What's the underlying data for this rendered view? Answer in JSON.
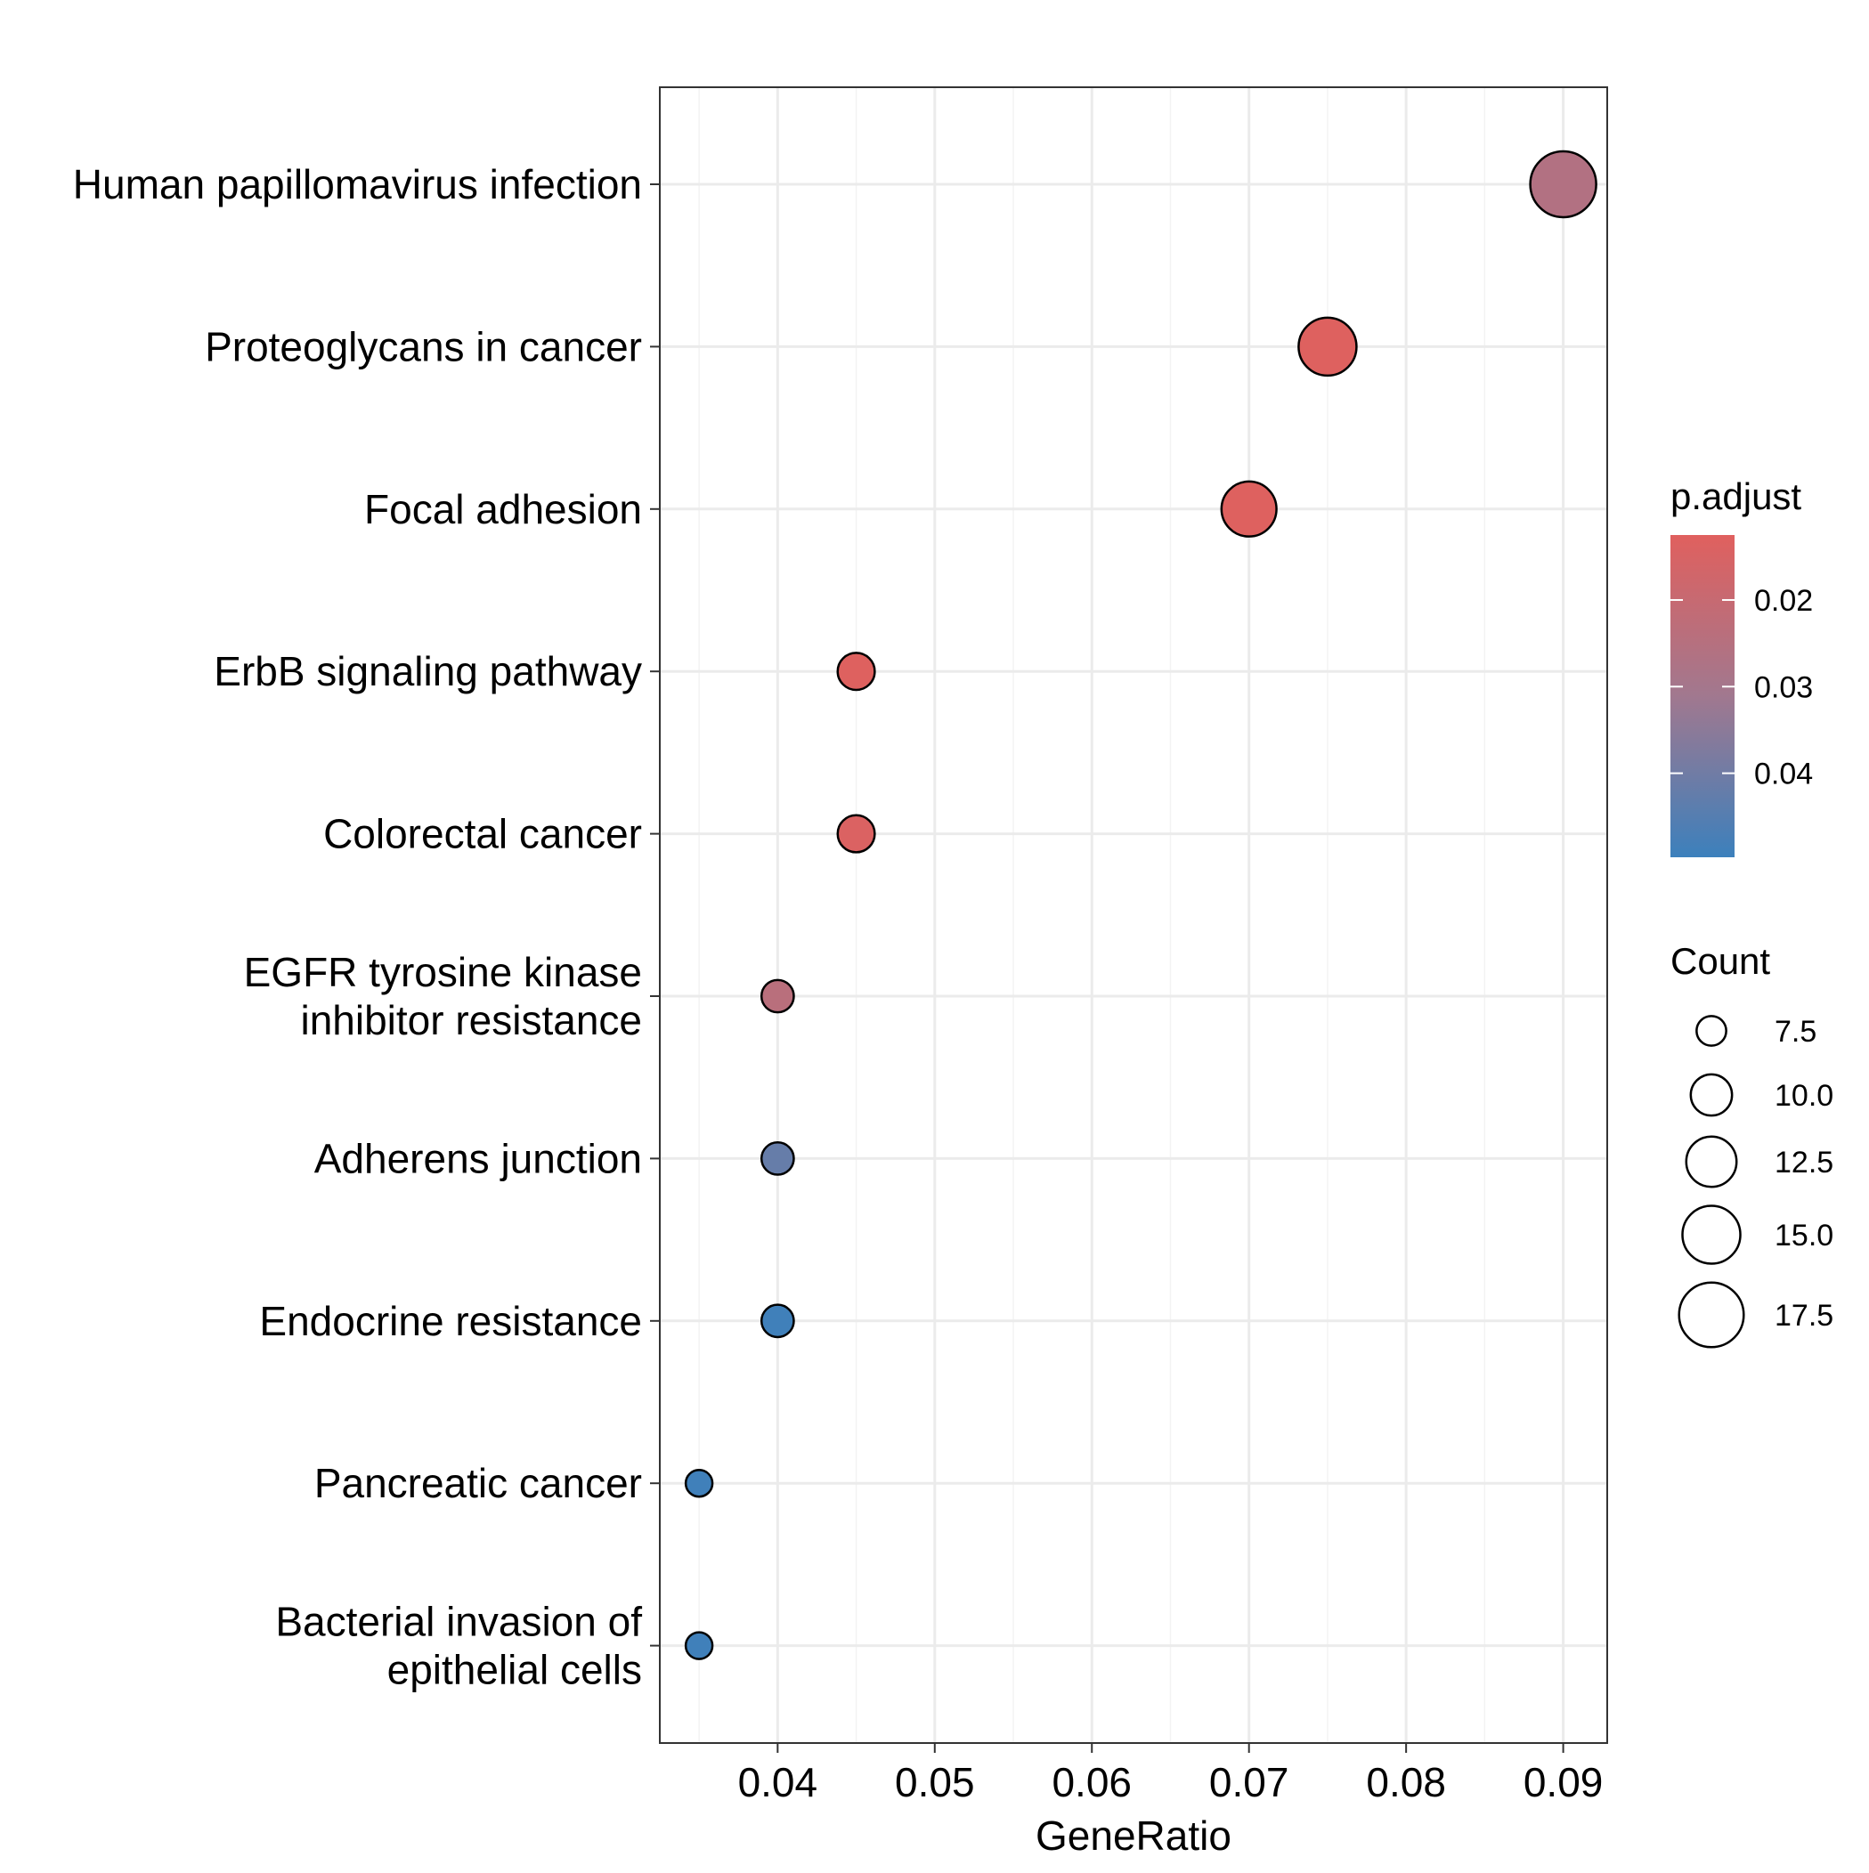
{
  "chart_data": {
    "type": "scatter",
    "subtype": "dot-plot",
    "title": "",
    "xlabel": "GeneRatio",
    "ylabel": "",
    "xlim": [
      0.0325,
      0.0928
    ],
    "x_ticks": [
      0.04,
      0.05,
      0.06,
      0.07,
      0.08,
      0.09
    ],
    "x_tick_labels": [
      "0.04",
      "0.05",
      "0.06",
      "0.07",
      "0.08",
      "0.09"
    ],
    "grid": true,
    "categories": [
      "Human papillomavirus infection",
      "Proteoglycans in cancer",
      "Focal adhesion",
      "ErbB signaling pathway",
      "Colorectal cancer",
      "EGFR tyrosine kinase inhibitor resistance",
      "Adherens junction",
      "Endocrine resistance",
      "Pancreatic cancer",
      "Bacterial invasion of epithelial cells"
    ],
    "category_label_lines": [
      [
        "Human papillomavirus infection"
      ],
      [
        "Proteoglycans in cancer"
      ],
      [
        "Focal adhesion"
      ],
      [
        "ErbB signaling pathway"
      ],
      [
        "Colorectal cancer"
      ],
      [
        "EGFR tyrosine kinase",
        "inhibitor resistance"
      ],
      [
        "Adherens junction"
      ],
      [
        "Endocrine resistance"
      ],
      [
        "Pancreatic cancer"
      ],
      [
        "Bacterial invasion of",
        "epithelial cells"
      ]
    ],
    "points": [
      {
        "term": "Human papillomavirus infection",
        "gene_ratio": 0.09,
        "count": 18,
        "p_adjust": 0.026
      },
      {
        "term": "Proteoglycans in cancer",
        "gene_ratio": 0.075,
        "count": 15,
        "p_adjust": 0.013
      },
      {
        "term": "Focal adhesion",
        "gene_ratio": 0.07,
        "count": 14,
        "p_adjust": 0.013
      },
      {
        "term": "ErbB signaling pathway",
        "gene_ratio": 0.045,
        "count": 9,
        "p_adjust": 0.013
      },
      {
        "term": "Colorectal cancer",
        "gene_ratio": 0.045,
        "count": 9,
        "p_adjust": 0.014
      },
      {
        "term": "EGFR tyrosine kinase inhibitor resistance",
        "gene_ratio": 0.04,
        "count": 8,
        "p_adjust": 0.024
      },
      {
        "term": "Adherens junction",
        "gene_ratio": 0.04,
        "count": 8,
        "p_adjust": 0.042
      },
      {
        "term": "Endocrine resistance",
        "gene_ratio": 0.04,
        "count": 8,
        "p_adjust": 0.049
      },
      {
        "term": "Pancreatic cancer",
        "gene_ratio": 0.035,
        "count": 7,
        "p_adjust": 0.049
      },
      {
        "term": "Bacterial invasion of epithelial cells",
        "gene_ratio": 0.035,
        "count": 7,
        "p_adjust": 0.049
      }
    ],
    "color_legend": {
      "title": "p.adjust",
      "range": [
        0.0125,
        0.0497
      ],
      "ticks": [
        0.02,
        0.03,
        0.04
      ],
      "tick_labels": [
        "0.02",
        "0.03",
        "0.04"
      ],
      "low_color": "#E0605E",
      "mid_color": "#A1788F",
      "high_color": "#3C80BC"
    },
    "size_legend": {
      "title": "Count",
      "values": [
        7.5,
        10.0,
        12.5,
        15.0,
        17.5
      ],
      "labels": [
        "7.5",
        "10.0",
        "12.5",
        "15.0",
        "17.5"
      ],
      "count_range": [
        7,
        18
      ]
    },
    "colors": {
      "grid_major": "#EBEBEB",
      "grid_minor": "#F3F3F3",
      "panel_border": "#333333",
      "point_outline": "#000000"
    }
  }
}
